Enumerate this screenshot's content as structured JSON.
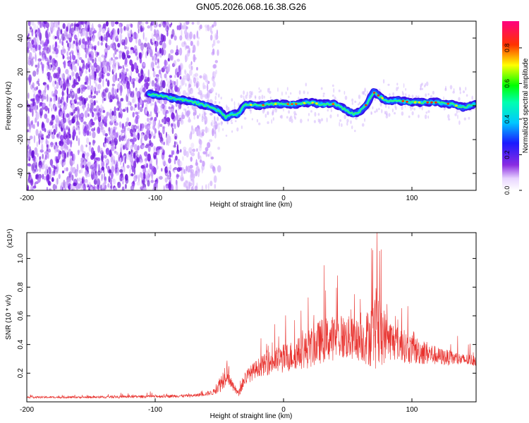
{
  "title": "GN05.2026.068.16.38.G26",
  "chart_data": [
    {
      "type": "heatmap",
      "name": "spectrogram",
      "xlabel": "Height of straight line (km)",
      "ylabel": "Frequency (Hz)",
      "xlim": [
        -200,
        150
      ],
      "ylim": [
        -50,
        50
      ],
      "xticks": [
        -200,
        -100,
        0,
        100
      ],
      "yticks": [
        -40,
        -20,
        0,
        20,
        40
      ],
      "colorbar": {
        "label": "Normalized spectral amplitude",
        "range": [
          0,
          0.95
        ],
        "ticks": [
          0.0,
          0.2,
          0.4,
          0.6,
          0.8
        ],
        "colormap": "rainbow (white-violet-blue-cyan-green-yellow-red-magenta)"
      },
      "signal_track": {
        "x": [
          -105,
          -90,
          -75,
          -60,
          -50,
          -45,
          -40,
          -35,
          -30,
          -20,
          -10,
          0,
          10,
          20,
          30,
          40,
          50,
          55,
          60,
          65,
          70,
          80,
          90,
          100,
          110,
          120,
          130,
          140,
          150
        ],
        "freq": [
          7,
          5,
          3,
          0,
          -3,
          -7,
          -5,
          -5,
          1,
          0,
          1,
          1,
          1,
          2,
          1,
          1,
          -3,
          -5,
          -3,
          1,
          8,
          3,
          3,
          2,
          2,
          2,
          1,
          -1,
          1
        ]
      },
      "noise_region_x": [
        -200,
        -70
      ]
    },
    {
      "type": "line",
      "name": "snr",
      "xlabel": "Height of straight line (km)",
      "ylabel": "SNR (10 * v/v)",
      "y_multiplier": "(x10⁴)",
      "xlim": [
        -200,
        150
      ],
      "ylim": [
        0,
        1.18
      ],
      "xticks": [
        -200,
        -100,
        0,
        100
      ],
      "yticks": [
        0.2,
        0.4,
        0.6,
        0.8,
        1.0
      ],
      "color": "#e8302c",
      "envelope": {
        "x": [
          -200,
          -150,
          -100,
          -70,
          -55,
          -48,
          -44,
          -40,
          -35,
          -30,
          -20,
          -10,
          0,
          10,
          20,
          30,
          40,
          50,
          60,
          70,
          75,
          80,
          90,
          100,
          110,
          120,
          130,
          140,
          150
        ],
        "base": [
          0.03,
          0.03,
          0.035,
          0.04,
          0.06,
          0.12,
          0.2,
          0.1,
          0.05,
          0.15,
          0.22,
          0.25,
          0.27,
          0.3,
          0.33,
          0.38,
          0.4,
          0.4,
          0.38,
          0.4,
          0.42,
          0.4,
          0.37,
          0.33,
          0.32,
          0.3,
          0.29,
          0.28,
          0.28
        ],
        "spread": [
          0.02,
          0.02,
          0.03,
          0.03,
          0.05,
          0.2,
          0.25,
          0.1,
          0.06,
          0.15,
          0.18,
          0.25,
          0.3,
          0.3,
          0.4,
          0.45,
          0.45,
          0.45,
          0.4,
          0.7,
          0.8,
          0.45,
          0.35,
          0.3,
          0.25,
          0.18,
          0.15,
          0.12,
          0.12
        ]
      }
    }
  ]
}
